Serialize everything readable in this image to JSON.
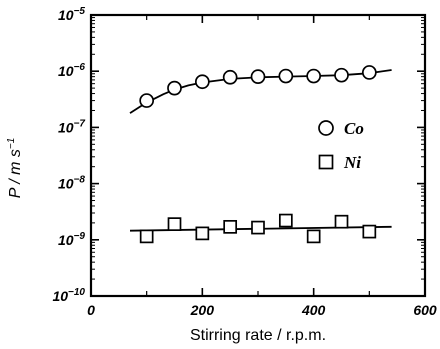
{
  "chart_data": {
    "type": "scatter",
    "xlabel": "Stirring rate / r.p.m.",
    "ylabel": "P / m s",
    "ylabel_exponent": "−1",
    "xlim": [
      0,
      600
    ],
    "ylim": [
      1e-10,
      1e-05
    ],
    "yscale": "log",
    "grid": false,
    "legend_position": "right",
    "x_ticks": [
      {
        "value": 0,
        "label": "0"
      },
      {
        "value": 200,
        "label": "200"
      },
      {
        "value": 400,
        "label": "400"
      },
      {
        "value": 600,
        "label": "600"
      }
    ],
    "y_ticks": [
      {
        "value": 1e-10,
        "base": "10",
        "exp": "−10"
      },
      {
        "value": 1e-09,
        "base": "10",
        "exp": "−9"
      },
      {
        "value": 1e-08,
        "base": "10",
        "exp": "−8"
      },
      {
        "value": 1e-07,
        "base": "10",
        "exp": "−7"
      },
      {
        "value": 1e-06,
        "base": "10",
        "exp": "−6"
      },
      {
        "value": 1e-05,
        "base": "10",
        "exp": "−5"
      }
    ],
    "series": [
      {
        "name": "Co",
        "marker": "circle",
        "x": [
          100,
          150,
          200,
          250,
          300,
          350,
          400,
          450,
          500
        ],
        "y": [
          3e-07,
          5e-07,
          6.5e-07,
          7.8e-07,
          8e-07,
          8.2e-07,
          8.2e-07,
          8.5e-07,
          9.5e-07
        ],
        "fit": {
          "x": [
            70,
            90,
            110,
            130,
            150,
            175,
            200,
            250,
            300,
            350,
            400,
            450,
            500,
            540
          ],
          "y": [
            1.8e-07,
            2.4e-07,
            3.1e-07,
            3.9e-07,
            4.7e-07,
            5.6e-07,
            6.3e-07,
            7.3e-07,
            7.8e-07,
            8e-07,
            8.2e-07,
            8.5e-07,
            9.2e-07,
            1.05e-06
          ]
        }
      },
      {
        "name": "Ni",
        "marker": "square",
        "x": [
          100,
          150,
          200,
          250,
          300,
          350,
          400,
          450,
          500
        ],
        "y": [
          1.15e-09,
          1.9e-09,
          1.3e-09,
          1.7e-09,
          1.65e-09,
          2.2e-09,
          1.15e-09,
          2.1e-09,
          1.4e-09
        ],
        "fit": {
          "x": [
            70,
            540
          ],
          "y": [
            1.45e-09,
            1.7e-09
          ]
        }
      }
    ]
  }
}
